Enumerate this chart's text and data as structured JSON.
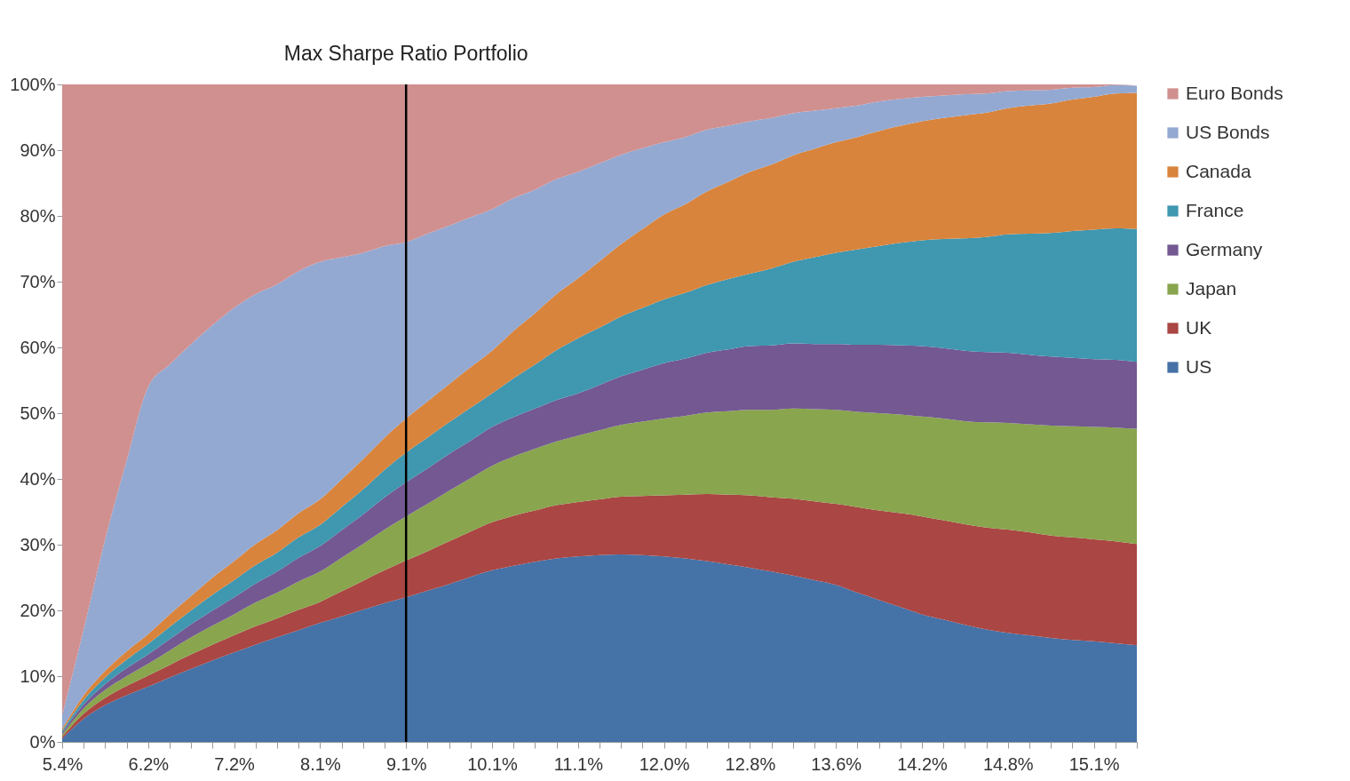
{
  "chart_data": {
    "type": "area",
    "stacked": true,
    "legend": "right",
    "categories": [
      "5.4%",
      null,
      null,
      null,
      "6.2%",
      null,
      null,
      null,
      "7.2%",
      null,
      null,
      null,
      "8.1%",
      null,
      null,
      null,
      "9.1%",
      null,
      null,
      null,
      "10.1%",
      null,
      null,
      null,
      "11.1%",
      null,
      null,
      null,
      "12.0%",
      null,
      null,
      null,
      "12.8%",
      null,
      null,
      null,
      "13.6%",
      null,
      null,
      null,
      "14.2%",
      null,
      null,
      null,
      "14.8%",
      null,
      null,
      null,
      "15.1%",
      null,
      null
    ],
    "ylim": [
      0,
      100
    ],
    "yticks": [
      {
        "value": 0,
        "label": "0%"
      },
      {
        "value": 10,
        "label": "10%"
      },
      {
        "value": 20,
        "label": "20%"
      },
      {
        "value": 30,
        "label": "30%"
      },
      {
        "value": 40,
        "label": "40%"
      },
      {
        "value": 50,
        "label": "50%"
      },
      {
        "value": 60,
        "label": "60%"
      },
      {
        "value": 70,
        "label": "70%"
      },
      {
        "value": 80,
        "label": "80%"
      },
      {
        "value": 90,
        "label": "90%"
      },
      {
        "value": 100,
        "label": "100%"
      }
    ],
    "ref_lines": [
      {
        "axis": "x",
        "value": "9.1%",
        "label": "Max Sharpe Ratio Portfolio",
        "color": "#000000"
      }
    ],
    "series": [
      {
        "name": "US",
        "color": "#4572a7",
        "values": [
          0.5,
          3.5,
          5.6,
          7.1,
          8.4,
          9.8,
          11.1,
          12.4,
          13.6,
          14.8,
          15.9,
          17,
          18.1,
          19.1,
          20.1,
          21.1,
          22,
          23,
          24,
          25.1,
          26.1,
          26.8,
          27.4,
          27.9,
          28.2,
          28.4,
          28.5,
          28.4,
          28.2,
          27.9,
          27.5,
          27,
          26.5,
          25.9,
          25.3,
          24.6,
          23.9,
          22.7,
          21.6,
          20.5,
          19.4,
          18.6,
          17.8,
          17.1,
          16.6,
          16.2,
          15.8,
          15.5,
          15.3,
          15,
          14.7
        ]
      },
      {
        "name": "UK",
        "color": "#aa4643",
        "values": [
          0.3,
          0.8,
          1.1,
          1.4,
          1.7,
          1.9,
          2.2,
          2.4,
          2.6,
          2.8,
          2.9,
          3.1,
          3.2,
          3.8,
          4.4,
          5,
          5.6,
          6,
          6.5,
          6.9,
          7.3,
          7.6,
          7.8,
          8.1,
          8.3,
          8.5,
          8.8,
          9,
          9.3,
          9.7,
          10.2,
          10.6,
          11,
          11.3,
          11.7,
          12,
          12.3,
          13,
          13.6,
          14.3,
          14.9,
          15.1,
          15.3,
          15.5,
          15.7,
          15.7,
          15.6,
          15.6,
          15.5,
          15.5,
          15.4
        ]
      },
      {
        "name": "Japan",
        "color": "#89a54e",
        "values": [
          0.3,
          0.8,
          1.2,
          1.5,
          1.8,
          2.2,
          2.6,
          2.9,
          3.2,
          3.6,
          3.9,
          4.3,
          4.6,
          5.1,
          5.6,
          6.2,
          6.7,
          7.2,
          7.7,
          8.1,
          8.6,
          9,
          9.4,
          9.7,
          10.1,
          10.5,
          10.9,
          11.3,
          11.7,
          12,
          12.4,
          12.7,
          13,
          13.3,
          13.7,
          14,
          14.3,
          14.5,
          14.8,
          15,
          15.2,
          15.5,
          15.7,
          16,
          16.2,
          16.4,
          16.7,
          16.9,
          17.1,
          17.3,
          17.5
        ]
      },
      {
        "name": "Germany",
        "color": "#735892",
        "values": [
          0.3,
          0.6,
          0.9,
          1.2,
          1.4,
          1.7,
          2,
          2.3,
          2.6,
          2.9,
          3.2,
          3.6,
          3.9,
          4.2,
          4.5,
          4.9,
          5.2,
          5.4,
          5.6,
          5.7,
          5.9,
          6,
          6.1,
          6.3,
          6.4,
          6.9,
          7.4,
          7.9,
          8.4,
          8.7,
          9.1,
          9.4,
          9.7,
          9.8,
          9.9,
          9.9,
          10,
          10.2,
          10.4,
          10.5,
          10.7,
          10.7,
          10.7,
          10.7,
          10.7,
          10.6,
          10.5,
          10.4,
          10.3,
          10.3,
          10.2
        ]
      },
      {
        "name": "France",
        "color": "#3f97b0",
        "values": [
          0.3,
          0.7,
          1,
          1.3,
          1.6,
          1.9,
          2.1,
          2.4,
          2.6,
          2.8,
          2.9,
          3.1,
          3.2,
          3.5,
          3.8,
          4.2,
          4.5,
          4.7,
          4.8,
          5,
          5.1,
          5.9,
          6.7,
          7.6,
          8.4,
          8.7,
          9.1,
          9.4,
          9.7,
          10,
          10.3,
          10.7,
          11,
          11.7,
          12.4,
          13.2,
          13.9,
          14.5,
          15,
          15.6,
          16.1,
          16.6,
          17.1,
          17.5,
          18,
          18.4,
          18.8,
          19.3,
          19.7,
          20,
          20.2
        ]
      },
      {
        "name": "Canada",
        "color": "#d9843c",
        "values": [
          0.3,
          0.7,
          1,
          1.3,
          1.5,
          1.9,
          2.2,
          2.6,
          2.9,
          3.2,
          3.4,
          3.7,
          3.9,
          4.2,
          4.6,
          4.9,
          5.2,
          5.5,
          5.8,
          6.2,
          6.5,
          7.2,
          7.8,
          8.5,
          9.1,
          10.1,
          11,
          12,
          12.9,
          13.5,
          14.2,
          14.8,
          15.5,
          15.8,
          16.2,
          16.5,
          16.8,
          17.1,
          17.5,
          17.8,
          18.1,
          18.4,
          18.7,
          18.9,
          19.2,
          19.5,
          19.7,
          20,
          20.2,
          20.5,
          20.7
        ]
      },
      {
        "name": "US Bonds",
        "color": "#93a9d2",
        "values": [
          2,
          10,
          20,
          29,
          37.6,
          38,
          38.3,
          38.4,
          38.5,
          38,
          37.4,
          36.8,
          36.1,
          33.8,
          31.4,
          29.1,
          26.8,
          25.5,
          24.1,
          22.8,
          21.5,
          20.2,
          18.8,
          17.5,
          16.2,
          14.9,
          13.6,
          12.3,
          11,
          10.2,
          9.4,
          8.5,
          7.7,
          7.1,
          6.4,
          5.8,
          5.2,
          4.8,
          4.5,
          4.1,
          3.7,
          3.4,
          3.2,
          2.9,
          2.6,
          2.3,
          2.1,
          1.8,
          1.5,
          1.3,
          1.1
        ]
      },
      {
        "name": "Euro Bonds",
        "color": "#d09090",
        "values": [
          96,
          82.9,
          69.2,
          57.2,
          46,
          42.6,
          39.5,
          36.6,
          34,
          31.9,
          30.4,
          28.4,
          27,
          26.3,
          25.6,
          24.6,
          24,
          22.7,
          21.5,
          20.2,
          19,
          17.3,
          16,
          14.4,
          13.3,
          12,
          10.7,
          9.7,
          8.8,
          8,
          6.9,
          6.3,
          5.6,
          5.1,
          4.4,
          4,
          3.6,
          3.2,
          2.6,
          2.2,
          1.9,
          1.7,
          1.5,
          1.4,
          1,
          0.9,
          0.8,
          0.5,
          0.4,
          0.1,
          0
        ]
      }
    ]
  }
}
